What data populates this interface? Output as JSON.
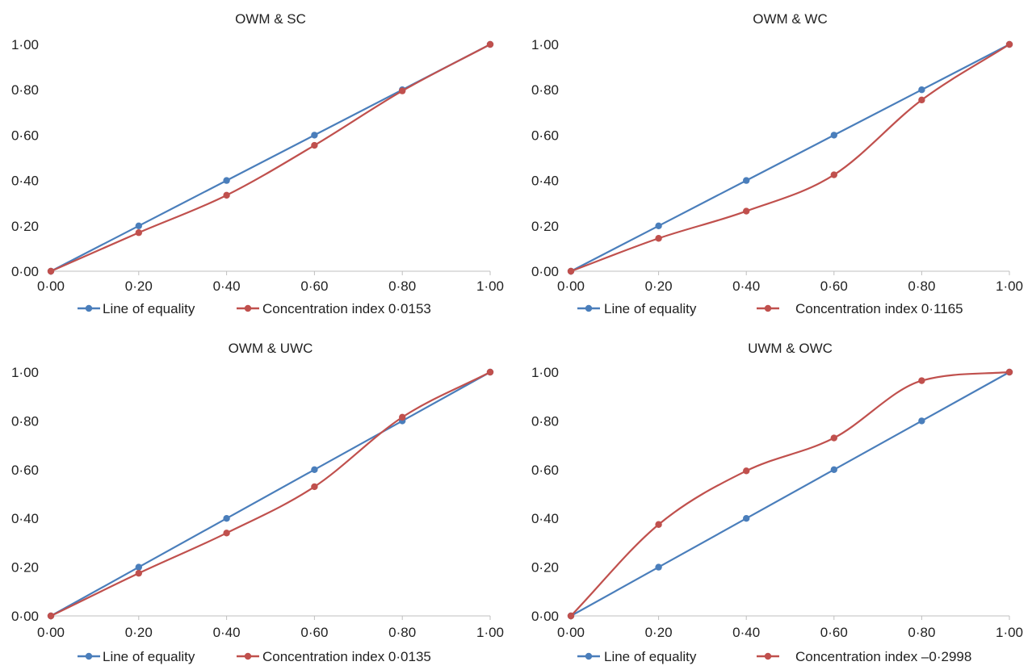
{
  "chart_data": [
    {
      "type": "line",
      "title": "OWM & SC",
      "x": [
        0.0,
        0.2,
        0.4,
        0.6,
        0.8,
        1.0
      ],
      "xlim": [
        0,
        1
      ],
      "ylim": [
        0,
        1
      ],
      "x_tick_labels": [
        "0·00",
        "0·20",
        "0·40",
        "0·60",
        "0·80",
        "1·00"
      ],
      "y_tick_labels": [
        "0·00",
        "0·20",
        "0·40",
        "0·60",
        "0·80",
        "1·00"
      ],
      "grid": false,
      "legend_position": "bottom",
      "series": [
        {
          "name": "Line of equality",
          "color": "#4a7ebb",
          "values": [
            0.0,
            0.2,
            0.4,
            0.6,
            0.8,
            1.0
          ]
        },
        {
          "name": "Concentration index 0·0153",
          "color": "#c0504d",
          "values": [
            0.0,
            0.17,
            0.335,
            0.555,
            0.795,
            1.0
          ]
        }
      ]
    },
    {
      "type": "line",
      "title": "OWM & WC",
      "x": [
        0.0,
        0.2,
        0.4,
        0.6,
        0.8,
        1.0
      ],
      "xlim": [
        0,
        1
      ],
      "ylim": [
        0,
        1
      ],
      "x_tick_labels": [
        "0·00",
        "0·20",
        "0·40",
        "0·60",
        "0·80",
        "1·00"
      ],
      "y_tick_labels": [
        "0·00",
        "0·20",
        "0·40",
        "0·60",
        "0·80",
        "1·00"
      ],
      "grid": false,
      "legend_position": "bottom",
      "series": [
        {
          "name": "Line of equality",
          "color": "#4a7ebb",
          "values": [
            0.0,
            0.2,
            0.4,
            0.6,
            0.8,
            1.0
          ]
        },
        {
          "name": "Concentration index 0·1165",
          "color": "#c0504d",
          "values": [
            0.0,
            0.145,
            0.265,
            0.425,
            0.755,
            1.0
          ]
        }
      ]
    },
    {
      "type": "line",
      "title": "OWM & UWC",
      "x": [
        0.0,
        0.2,
        0.4,
        0.6,
        0.8,
        1.0
      ],
      "xlim": [
        0,
        1
      ],
      "ylim": [
        0,
        1
      ],
      "x_tick_labels": [
        "0·00",
        "0·20",
        "0·40",
        "0·60",
        "0·80",
        "1·00"
      ],
      "y_tick_labels": [
        "0·00",
        "0·20",
        "0·40",
        "0·60",
        "0·80",
        "1·00"
      ],
      "grid": false,
      "legend_position": "bottom",
      "series": [
        {
          "name": "Line of equality",
          "color": "#4a7ebb",
          "values": [
            0.0,
            0.2,
            0.4,
            0.6,
            0.8,
            1.0
          ]
        },
        {
          "name": "Concentration index 0·0135",
          "color": "#c0504d",
          "values": [
            0.0,
            0.175,
            0.34,
            0.53,
            0.815,
            1.0
          ]
        }
      ]
    },
    {
      "type": "line",
      "title": "UWM & OWC",
      "x": [
        0.0,
        0.2,
        0.4,
        0.6,
        0.8,
        1.0
      ],
      "xlim": [
        0,
        1
      ],
      "ylim": [
        0,
        1
      ],
      "x_tick_labels": [
        "0·00",
        "0·20",
        "0·40",
        "0·60",
        "0·80",
        "1·00"
      ],
      "y_tick_labels": [
        "0·00",
        "0·20",
        "0·40",
        "0·60",
        "0·80",
        "1·00"
      ],
      "grid": false,
      "legend_position": "bottom",
      "series": [
        {
          "name": "Line of equality",
          "color": "#4a7ebb",
          "values": [
            0.0,
            0.2,
            0.4,
            0.6,
            0.8,
            1.0
          ]
        },
        {
          "name": "Concentration index –0·2998",
          "color": "#c0504d",
          "values": [
            0.0,
            0.375,
            0.595,
            0.73,
            0.965,
            1.0
          ]
        }
      ]
    }
  ]
}
